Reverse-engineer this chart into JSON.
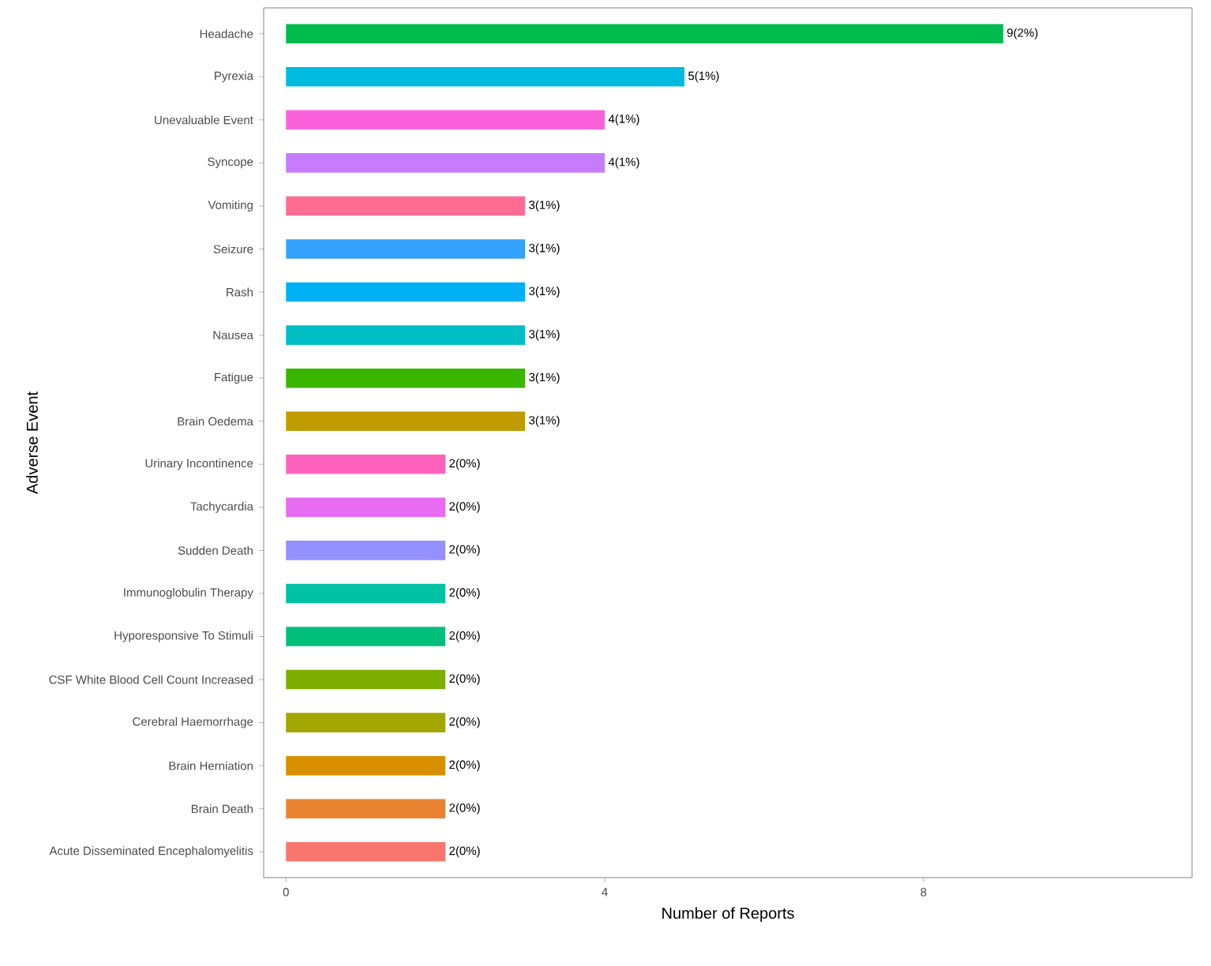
{
  "chart_data": {
    "type": "bar",
    "orientation": "horizontal",
    "xlabel": "Number of Reports",
    "ylabel": "Adverse Event",
    "categories": [
      "Headache",
      "Pyrexia",
      "Unevaluable Event",
      "Syncope",
      "Vomiting",
      "Seizure",
      "Rash",
      "Nausea",
      "Fatigue",
      "Brain Oedema",
      "Urinary Incontinence",
      "Tachycardia",
      "Sudden Death",
      "Immunoglobulin Therapy",
      "Hyporesponsive To Stimuli",
      "CSF White Blood Cell Count Increased",
      "Cerebral Haemorrhage",
      "Brain Herniation",
      "Brain Death",
      "Acute Disseminated Encephalomyelitis"
    ],
    "values": [
      9,
      5,
      4,
      4,
      3,
      3,
      3,
      3,
      3,
      3,
      2,
      2,
      2,
      2,
      2,
      2,
      2,
      2,
      2,
      2
    ],
    "value_labels": [
      "9(2%)",
      "5(1%)",
      "4(1%)",
      "4(1%)",
      "3(1%)",
      "3(1%)",
      "3(1%)",
      "3(1%)",
      "3(1%)",
      "3(1%)",
      "2(0%)",
      "2(0%)",
      "2(0%)",
      "2(0%)",
      "2(0%)",
      "2(0%)",
      "2(0%)",
      "2(0%)",
      "2(0%)",
      "2(0%)"
    ],
    "colors": [
      "#00BB4E",
      "#00BAE0",
      "#FA62DB",
      "#C77CFF",
      "#FF6C91",
      "#35A2FF",
      "#00B0F6",
      "#00BFC4",
      "#39B600",
      "#C09B00",
      "#FF62BC",
      "#E76BF3",
      "#9590FF",
      "#00C1A3",
      "#00BF7D",
      "#7CAE00",
      "#A3A500",
      "#D89000",
      "#EA8331",
      "#F8766D"
    ],
    "xlim": [
      -0.28,
      11.37
    ],
    "xticks": [
      0,
      4,
      8
    ],
    "grid": false
  }
}
